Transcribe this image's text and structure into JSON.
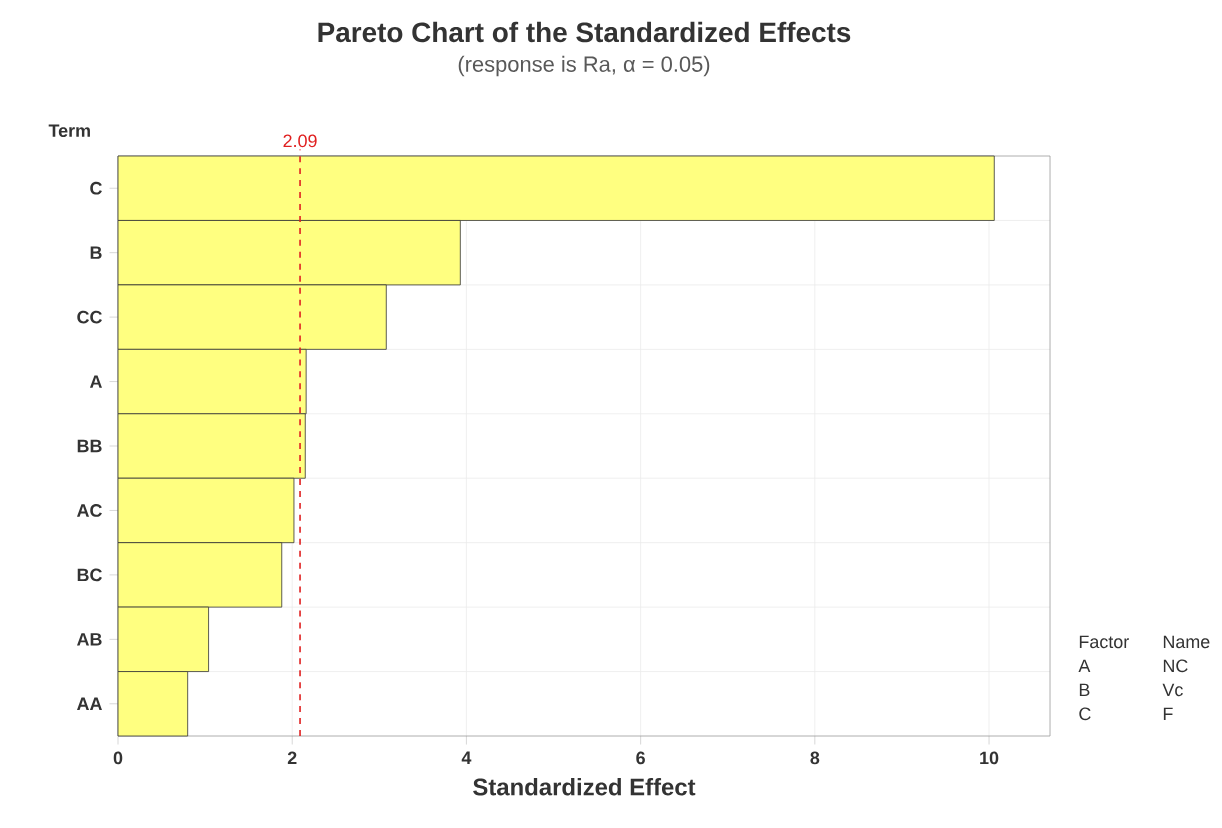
{
  "chart_data": {
    "type": "bar",
    "orientation": "horizontal",
    "title": "Pareto Chart of the Standardized Effects",
    "subtitle": "(response is Ra, α = 0.05)",
    "xlabel": "Standardized Effect",
    "ylabel": "Term",
    "categories": [
      "C",
      "B",
      "CC",
      "A",
      "BB",
      "AC",
      "BC",
      "AB",
      "AA"
    ],
    "values": [
      10.06,
      3.93,
      3.08,
      2.16,
      2.15,
      2.02,
      1.88,
      1.04,
      0.8
    ],
    "color": "#ffff80",
    "xlim": [
      0,
      10.7
    ],
    "xticks": [
      0,
      2,
      4,
      6,
      8,
      10
    ],
    "ref_lines": [
      {
        "axis": "x",
        "value": 2.09,
        "label": "2.09",
        "color": "#e02020",
        "line_style": "dashed"
      }
    ],
    "annotations": [
      "Factor",
      "Name",
      "A",
      "NC",
      "B",
      "Vc",
      "C",
      "F"
    ],
    "grid": true
  }
}
